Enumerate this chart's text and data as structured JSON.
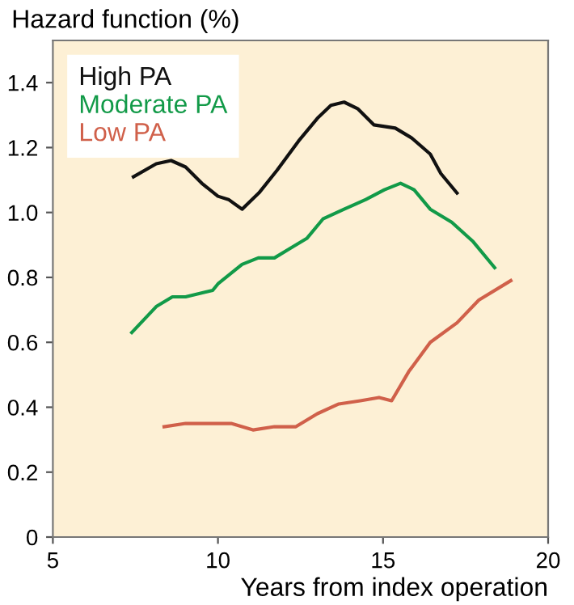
{
  "chart_data": {
    "type": "line",
    "title": "Hazard function (%)",
    "xlabel": "Years from index operation",
    "xlim": [
      5,
      20
    ],
    "xticks": [
      5,
      10,
      15,
      20
    ],
    "ylim": [
      0,
      1.53
    ],
    "yticks": [
      0,
      {
        "value": 0.2,
        "label": "0.2"
      },
      {
        "value": 0.4,
        "label": "0.4"
      },
      {
        "value": 0.6,
        "label": "0.6"
      },
      {
        "value": 0.8,
        "label": "0.8"
      },
      {
        "value": 1,
        "label": "1.0"
      },
      {
        "value": 1.2,
        "label": "1.2"
      },
      {
        "value": 1.4,
        "label": "1.4"
      }
    ],
    "grid": false,
    "legend": "top left",
    "series": [
      {
        "name": "High PA",
        "color": "#111111",
        "x": [
          7.44,
          8.13,
          8.58,
          9.02,
          9.51,
          10.0,
          10.32,
          10.73,
          11.24,
          11.79,
          12.44,
          13.01,
          13.42,
          13.82,
          14.23,
          14.72,
          15.37,
          15.86,
          16.43,
          16.75,
          17.24
        ],
        "values": [
          1.11,
          1.15,
          1.16,
          1.14,
          1.09,
          1.05,
          1.04,
          1.01,
          1.06,
          1.13,
          1.22,
          1.29,
          1.33,
          1.34,
          1.32,
          1.27,
          1.26,
          1.23,
          1.18,
          1.12,
          1.06
        ]
      },
      {
        "name": "Moderate PA",
        "color": "#129a48",
        "x": [
          7.39,
          8.13,
          8.62,
          9.02,
          9.84,
          10.0,
          10.73,
          11.22,
          11.71,
          12.2,
          12.69,
          13.18,
          13.82,
          14.48,
          15.04,
          15.53,
          15.94,
          16.43,
          17.08,
          17.73,
          18.38
        ],
        "values": [
          0.63,
          0.71,
          0.74,
          0.74,
          0.76,
          0.78,
          0.84,
          0.86,
          0.86,
          0.89,
          0.92,
          0.98,
          1.01,
          1.04,
          1.07,
          1.09,
          1.07,
          1.01,
          0.97,
          0.91,
          0.83
        ]
      },
      {
        "name": "Low PA",
        "color": "#d0604a",
        "x": [
          8.37,
          9.02,
          9.75,
          10.4,
          11.06,
          11.71,
          12.36,
          13.01,
          13.66,
          14.31,
          14.88,
          15.26,
          15.78,
          16.43,
          17.24,
          17.9,
          18.87
        ],
        "values": [
          0.34,
          0.35,
          0.35,
          0.35,
          0.33,
          0.34,
          0.34,
          0.38,
          0.41,
          0.42,
          0.43,
          0.42,
          0.51,
          0.6,
          0.66,
          0.73,
          0.79
        ]
      }
    ]
  }
}
